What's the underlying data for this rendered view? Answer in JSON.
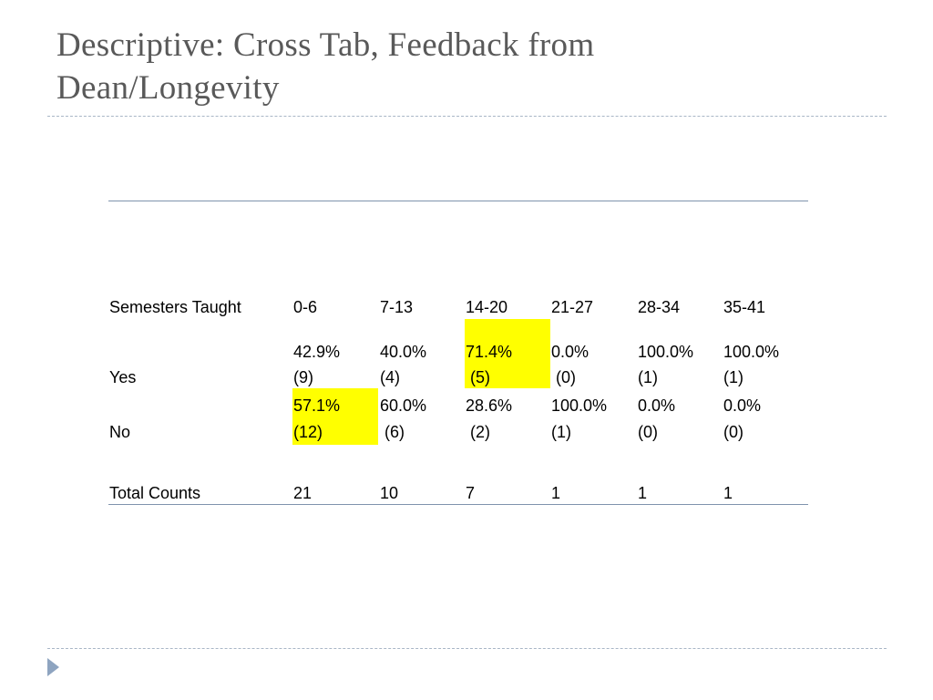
{
  "slide": {
    "title_line1": "Descriptive: Cross Tab, Feedback from",
    "title_line2": "Dean/Longevity"
  },
  "table": {
    "header_label": "Semesters Taught",
    "columns": [
      "0-6",
      "7-13",
      "14-20",
      "21-27",
      "28-34",
      "35-41"
    ],
    "rows": [
      {
        "label": "Yes",
        "cells": [
          {
            "pct": "42.9%",
            "count": "(9)"
          },
          {
            "pct": "40.0%",
            "count": "(4)"
          },
          {
            "pct": "71.4%",
            "count": " (5)"
          },
          {
            "pct": "0.0%",
            "count": " (0)"
          },
          {
            "pct": "100.0%",
            "count": "(1)"
          },
          {
            "pct": "100.0%",
            "count": "(1)"
          }
        ]
      },
      {
        "label": "No",
        "cells": [
          {
            "pct": "57.1%",
            "count": "(12)"
          },
          {
            "pct": "60.0%",
            "count": " (6)"
          },
          {
            "pct": "28.6%",
            "count": " (2)"
          },
          {
            "pct": "100.0%",
            "count": "(1)"
          },
          {
            "pct": "0.0%",
            "count": "(0)"
          },
          {
            "pct": "0.0%",
            "count": "(0)"
          }
        ]
      }
    ],
    "total_label": "Total Counts",
    "totals": [
      "21",
      "10",
      "7",
      "1",
      "1",
      "1"
    ],
    "highlight_color": "#ffff00"
  },
  "nav": {
    "icon": "play-arrow-icon"
  }
}
